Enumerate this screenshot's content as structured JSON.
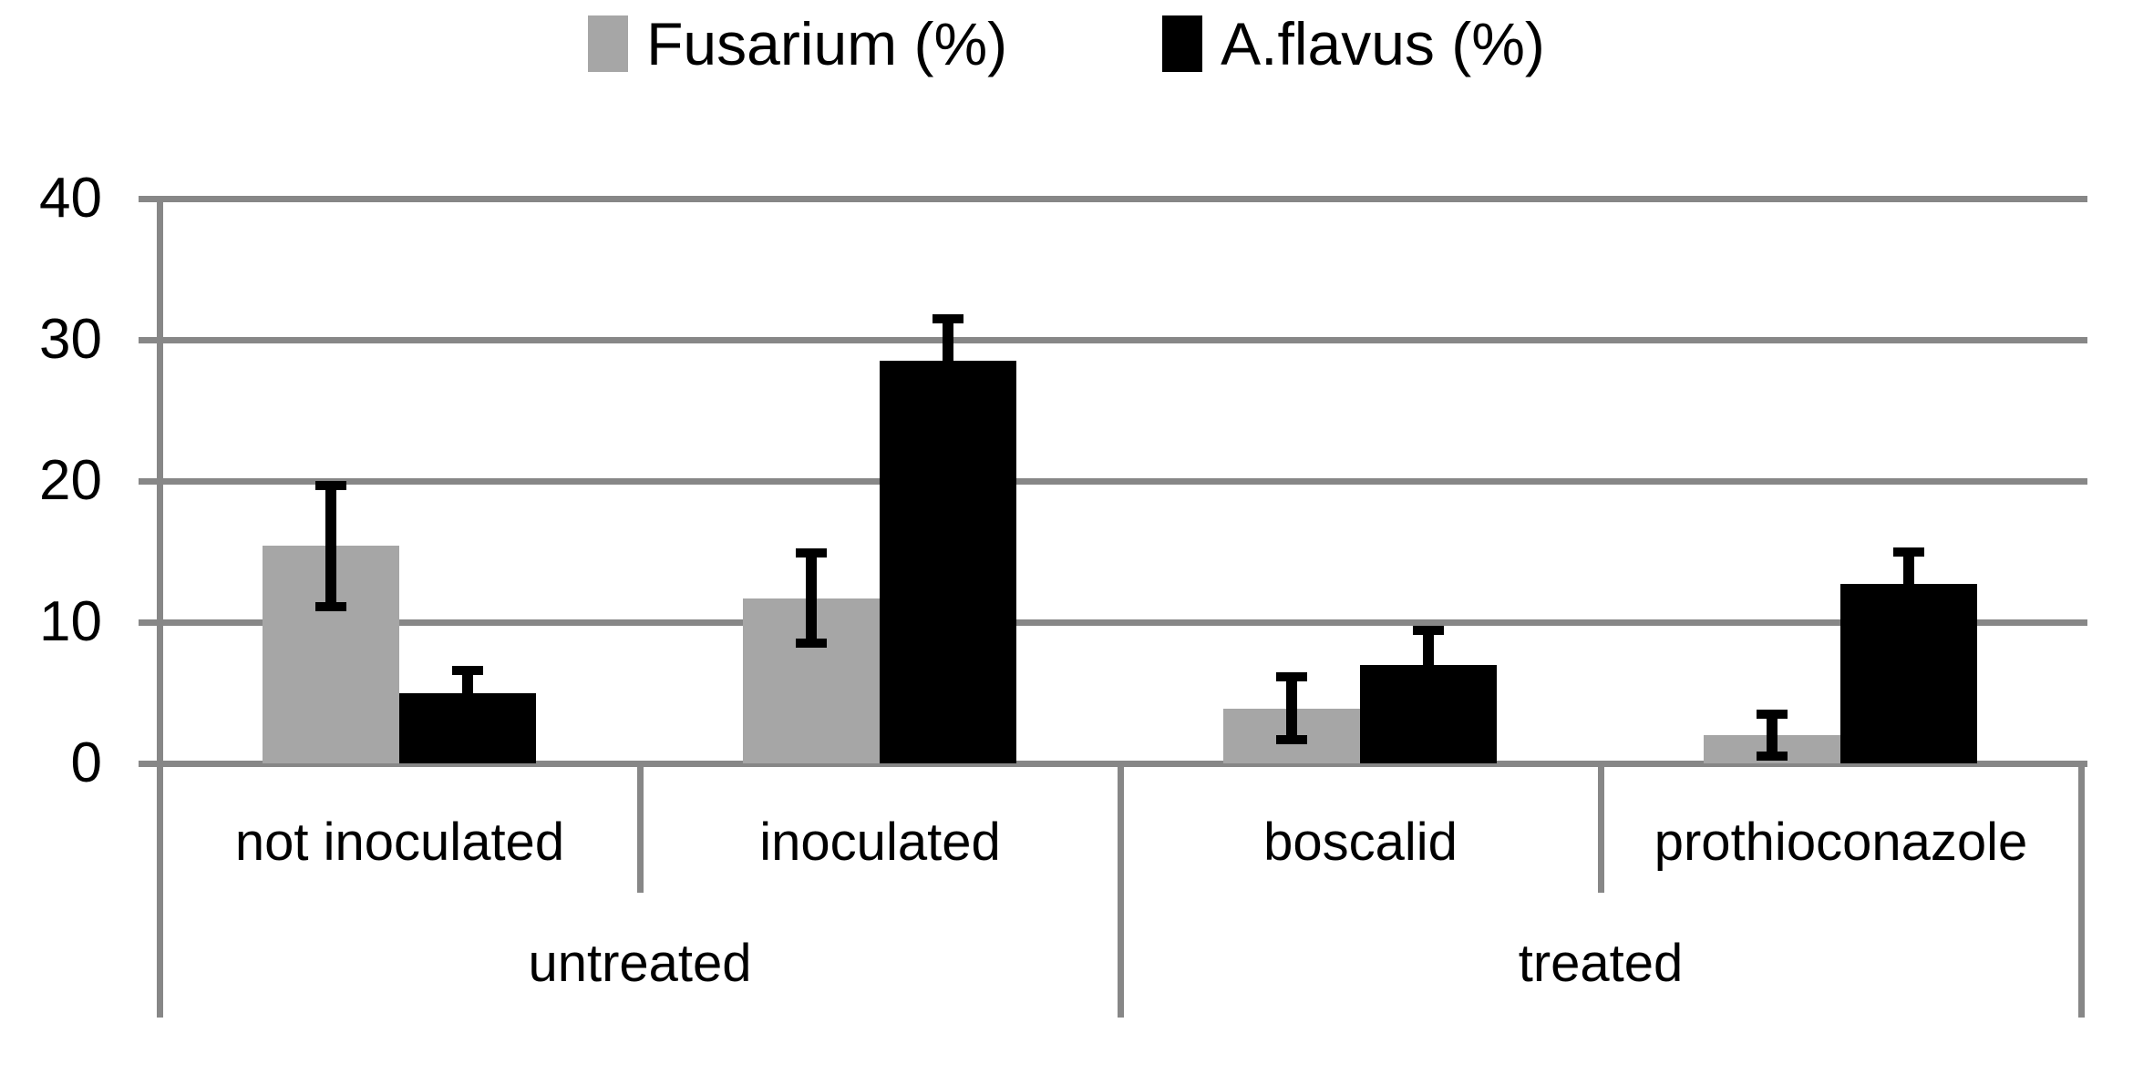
{
  "chart_data": {
    "type": "bar",
    "title": "",
    "categories": [
      "not inoculated",
      "inoculated",
      "boscalid",
      "prothioconazole"
    ],
    "group_labels": [
      {
        "label": "untreated",
        "span": [
          0,
          1
        ]
      },
      {
        "label": "treated",
        "span": [
          2,
          3
        ]
      }
    ],
    "series": [
      {
        "name": "Fusarium (%)",
        "color": "#a6a6a6",
        "values": [
          15.4,
          11.7,
          3.9,
          2.0
        ],
        "errors": [
          4.3,
          3.2,
          2.2,
          1.5
        ]
      },
      {
        "name": "A.flavus (%)",
        "color": "#000000",
        "values": [
          5.0,
          28.5,
          7.0,
          12.7
        ],
        "errors": [
          1.6,
          3.0,
          2.4,
          2.3
        ]
      }
    ],
    "ylim": [
      0,
      40
    ],
    "ytick_step": 10,
    "ytick_labels": [
      "0",
      "10",
      "20",
      "30",
      "40"
    ],
    "grid": true,
    "legend_position": "top",
    "axis_color": "#878787",
    "bar_gray": "#a6a6a6",
    "bar_black": "#000000",
    "text_color": "#000000"
  }
}
